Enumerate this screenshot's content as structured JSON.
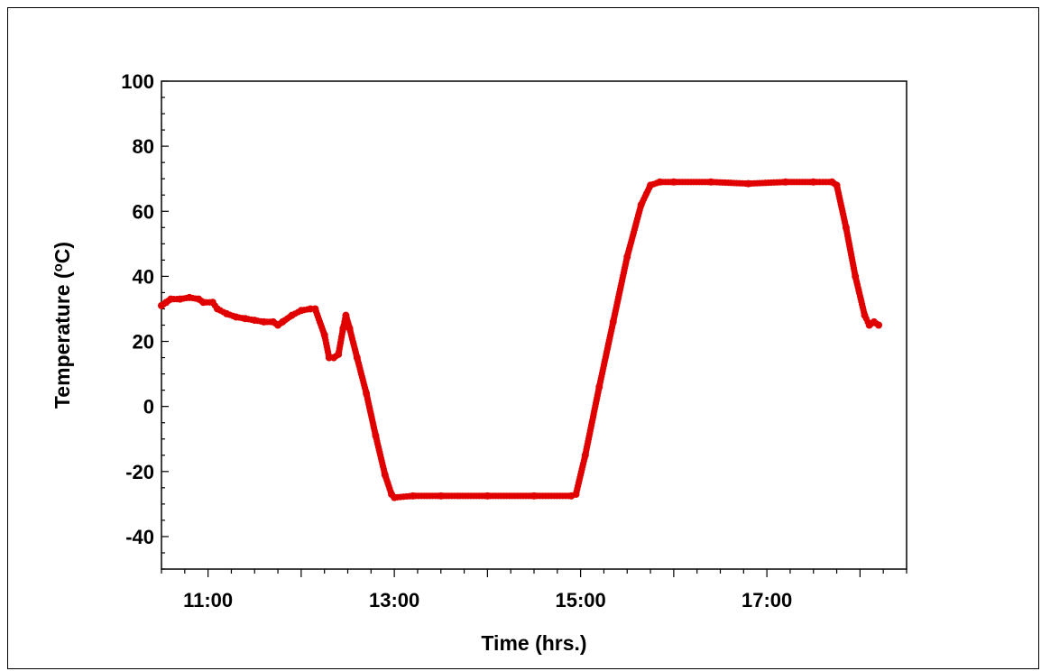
{
  "chart_data": {
    "type": "scatter",
    "title": "",
    "xlabel": "Time (hrs.)",
    "ylabel_main": "Temperature (",
    "ylabel_sup": "o",
    "ylabel_end": "C)",
    "x_unit": "time of day (hours)",
    "xlim": [
      10.5,
      18.5
    ],
    "ylim": [
      -50,
      100
    ],
    "x_ticks": [
      {
        "value": 11,
        "label": "11:00"
      },
      {
        "value": 13,
        "label": "13:00"
      },
      {
        "value": 15,
        "label": "15:00"
      },
      {
        "value": 17,
        "label": "17:00"
      }
    ],
    "y_ticks": [
      {
        "value": -40,
        "label": "-40"
      },
      {
        "value": -20,
        "label": "-20"
      },
      {
        "value": 0,
        "label": "0"
      },
      {
        "value": 20,
        "label": "20"
      },
      {
        "value": 40,
        "label": "40"
      },
      {
        "value": 60,
        "label": "60"
      },
      {
        "value": 80,
        "label": "80"
      },
      {
        "value": 100,
        "label": "100"
      }
    ],
    "grid": false,
    "legend": "none",
    "marker_color": "#e00000",
    "series": [
      {
        "points": [
          [
            10.5,
            31
          ],
          [
            10.55,
            32
          ],
          [
            10.6,
            33
          ],
          [
            10.7,
            33
          ],
          [
            10.8,
            33.5
          ],
          [
            10.9,
            33
          ],
          [
            10.95,
            32
          ],
          [
            11.05,
            32
          ],
          [
            11.1,
            30
          ],
          [
            11.2,
            28.5
          ],
          [
            11.3,
            27.5
          ],
          [
            11.4,
            27
          ],
          [
            11.5,
            26.5
          ],
          [
            11.6,
            26
          ],
          [
            11.7,
            26
          ],
          [
            11.75,
            25
          ],
          [
            11.8,
            26
          ],
          [
            11.9,
            28
          ],
          [
            12.0,
            29.5
          ],
          [
            12.1,
            30
          ],
          [
            12.15,
            30
          ],
          [
            12.25,
            22
          ],
          [
            12.3,
            15
          ],
          [
            12.35,
            15
          ],
          [
            12.4,
            16
          ],
          [
            12.45,
            24
          ],
          [
            12.48,
            28
          ],
          [
            12.52,
            24
          ],
          [
            12.6,
            15
          ],
          [
            12.7,
            4
          ],
          [
            12.8,
            -9
          ],
          [
            12.9,
            -21
          ],
          [
            12.97,
            -27
          ],
          [
            13.0,
            -28
          ],
          [
            13.2,
            -27.5
          ],
          [
            13.5,
            -27.5
          ],
          [
            14.0,
            -27.5
          ],
          [
            14.5,
            -27.5
          ],
          [
            14.9,
            -27.5
          ],
          [
            14.95,
            -27
          ],
          [
            15.05,
            -15
          ],
          [
            15.2,
            6
          ],
          [
            15.35,
            26
          ],
          [
            15.5,
            46
          ],
          [
            15.65,
            62
          ],
          [
            15.75,
            68
          ],
          [
            15.85,
            69
          ],
          [
            16.0,
            69
          ],
          [
            16.4,
            69
          ],
          [
            16.8,
            68.5
          ],
          [
            17.2,
            69
          ],
          [
            17.5,
            69
          ],
          [
            17.7,
            69
          ],
          [
            17.75,
            68
          ],
          [
            17.85,
            55
          ],
          [
            17.95,
            40
          ],
          [
            18.05,
            28
          ],
          [
            18.1,
            25
          ],
          [
            18.15,
            26
          ],
          [
            18.2,
            25
          ]
        ]
      }
    ]
  }
}
